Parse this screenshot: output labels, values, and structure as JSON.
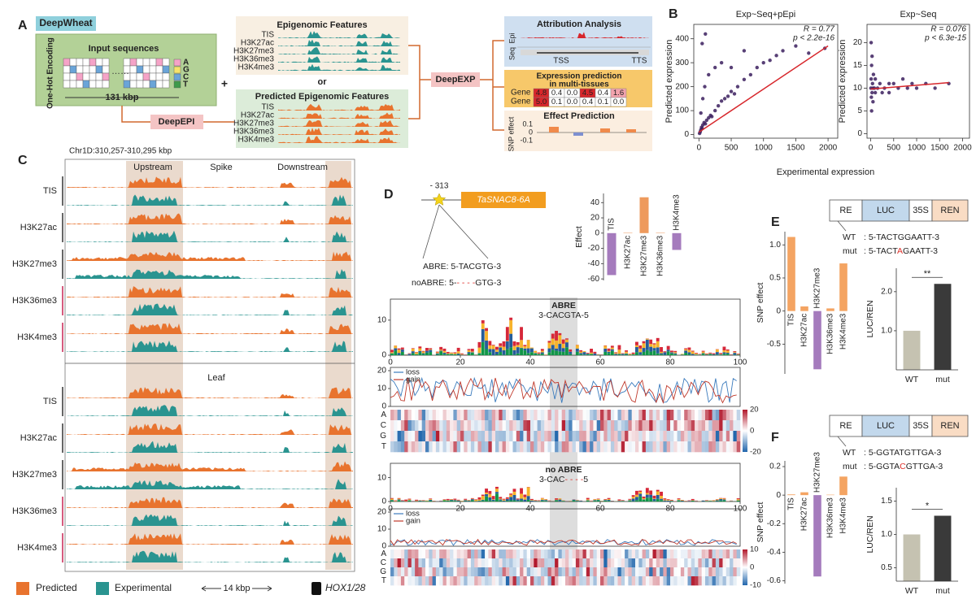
{
  "panel_a": {
    "label": "A",
    "model": "DeepWheat",
    "input_title": "Input sequences",
    "encoding": "One-Hot Encoding",
    "bases": [
      "A",
      "G",
      "C",
      "T"
    ],
    "length": "131 kbp",
    "plus": "+",
    "or": "or",
    "epi_title": "Epigenomic Features",
    "pred_title": "Predicted Epigenomic Features",
    "marks": [
      "TIS",
      "H3K27ac",
      "H3K27me3",
      "H3K36me3",
      "H3K4me3"
    ],
    "deepepi": "DeepEPI",
    "deepexp": "DeepEXP",
    "attribution": "Attribution Analysis",
    "epi_seq": [
      "Epi",
      "Seq"
    ],
    "tss": "TSS",
    "tts": "TTS",
    "expr_title": [
      "Expression prediction",
      "in multi-tissues"
    ],
    "genes": [
      "Gene",
      "Gene"
    ],
    "expr_table": [
      [
        "4.8",
        "0.4",
        "0.0",
        "4.5",
        "0.4",
        "1.6"
      ],
      [
        "5.0",
        "0.1",
        "0.0",
        "0.4",
        "0.1",
        "0.0"
      ]
    ],
    "effect_title": "Effect Prediction",
    "snp_effect": "SNP effect",
    "effect_ticks": [
      "0.1",
      "0",
      "-0.1"
    ]
  },
  "panel_b": {
    "label": "B",
    "xlabel": "Experimental expression",
    "ylabel": "Predicted expression",
    "charts": [
      {
        "type": "scatter",
        "title": "Exp~Seq+pEpi",
        "r": "R = 0.77",
        "p": "p < 2.2e-16",
        "xlim": [
          -80,
          2150
        ],
        "ylim": [
          -15,
          460
        ],
        "xticks": [
          0,
          500,
          1000,
          1500,
          2000
        ],
        "yticks": [
          0,
          100,
          200,
          300,
          400
        ],
        "color": "#3b1f5e",
        "x": [
          10,
          20,
          30,
          40,
          50,
          60,
          80,
          100,
          120,
          150,
          180,
          200,
          250,
          300,
          350,
          400,
          450,
          500,
          550,
          600,
          700,
          800,
          900,
          1000,
          1100,
          1200,
          1300,
          1500,
          1700,
          1950,
          30,
          60,
          90,
          150,
          250,
          350,
          500,
          700,
          100,
          50
        ],
        "y": [
          5,
          12,
          20,
          30,
          25,
          40,
          50,
          45,
          60,
          70,
          80,
          75,
          100,
          120,
          140,
          150,
          160,
          180,
          170,
          200,
          230,
          250,
          280,
          300,
          310,
          330,
          350,
          370,
          340,
          360,
          90,
          150,
          200,
          250,
          280,
          300,
          280,
          350,
          420,
          380
        ],
        "fit": {
          "color": "#d7262b",
          "x": [
            0,
            2000
          ],
          "y": [
            10,
            370
          ]
        }
      },
      {
        "type": "scatter",
        "title": "Exp~Seq",
        "r": "R = 0.076",
        "p": "p < 6.3e-15",
        "xlim": [
          -80,
          2150
        ],
        "ylim": [
          -1,
          24
        ],
        "xticks": [
          0,
          500,
          1000,
          1500,
          2000
        ],
        "yticks": [
          0,
          5,
          10,
          15,
          20
        ],
        "color": "#3b1f5e",
        "x": [
          5,
          10,
          15,
          20,
          30,
          40,
          50,
          60,
          80,
          100,
          150,
          200,
          300,
          400,
          500,
          600,
          700,
          800,
          900,
          1000,
          1200,
          1400,
          1700,
          10,
          20,
          30,
          50,
          100,
          250,
          400
        ],
        "y": [
          10,
          12,
          8,
          15,
          9,
          11,
          10,
          13,
          10,
          9,
          10,
          11,
          10,
          9,
          11,
          10,
          12,
          10,
          11,
          10,
          11,
          10,
          11,
          20,
          5,
          17,
          7,
          12,
          9,
          11
        ],
        "fit": {
          "color": "#d7262b",
          "x": [
            0,
            1700
          ],
          "y": [
            9.8,
            11.2
          ]
        }
      }
    ]
  },
  "panel_c": {
    "label": "C",
    "region": "Chr1D:310,257-310,295 kbp",
    "sections": [
      "Upstream",
      "Spike",
      "Downstream"
    ],
    "tissue2": "Leaf",
    "legend": [
      "Predicted",
      "Experimental"
    ],
    "colors": [
      "#e8732e",
      "#2a9490"
    ],
    "scale": "14 kbp",
    "gene": "HOX1/28"
  },
  "panel_d": {
    "label": "D",
    "position": "- 313",
    "gene": "TaSNAC8-6A",
    "abre": "ABRE: 5-TACGTG-3",
    "noabre": [
      "noABRE: 5-",
      "- - - -",
      "GTG-3"
    ],
    "effect_chart": {
      "type": "bar",
      "ylabel": "Effect",
      "categories": [
        "TIS",
        "H3K27ac",
        "H3K27me3",
        "H3K36me3",
        "H3K4me3"
      ],
      "values": [
        -55,
        0.5,
        47,
        0.5,
        -22
      ],
      "colors": [
        "#a57bbd",
        "#ee9a5d",
        "#ee9a5d",
        "#ee9a5d",
        "#a57bbd"
      ],
      "ylim": [
        -62,
        52
      ],
      "yticks": [
        -60,
        -40,
        -20,
        0,
        20,
        40
      ]
    },
    "logos": [
      {
        "title": "ABRE",
        "motif": [
          "3-CACGTA-5"
        ],
        "yticks": [
          0,
          10
        ],
        "xticks": [
          0,
          20,
          40,
          60,
          80,
          100
        ],
        "line_yticks": [
          0,
          10,
          20
        ],
        "legend": [
          "loss",
          "gain"
        ],
        "rows": [
          "A",
          "C",
          "G",
          "T"
        ],
        "cbar": [
          20,
          0,
          -20
        ]
      },
      {
        "title": "no ABRE",
        "motif": [
          "3-CAC",
          "- - - -",
          "5"
        ],
        "yticks": [
          0,
          10
        ],
        "xticks": [
          0,
          20,
          40,
          60,
          80,
          100
        ],
        "line_yticks": [
          0,
          10,
          20
        ],
        "legend": [
          "loss",
          "gain"
        ],
        "rows": [
          "A",
          "C",
          "G",
          "T"
        ],
        "cbar": [
          10,
          0,
          -10
        ]
      }
    ]
  },
  "panel_e": {
    "label": "E",
    "construct": [
      "RE",
      "LUC",
      "35S",
      "REN"
    ],
    "wt": [
      "WT",
      ": 5-TACTGGAATT-3"
    ],
    "mut": [
      "mut",
      ": 5-TACT",
      "A",
      "GAATT-3"
    ],
    "snp_chart": {
      "type": "bar",
      "ylabel": "SNP effect",
      "categories": [
        "TIS",
        "H3K27ac",
        "H3K27me3",
        "H3K36me3",
        "H3K4me3"
      ],
      "values": [
        1.12,
        0.07,
        -0.88,
        0.04,
        0.72
      ],
      "colors": [
        "#f4a462",
        "#f4a462",
        "#a57bbd",
        "#f4a462",
        "#f4a462"
      ],
      "ylim": [
        -0.95,
        1.2
      ],
      "yticks": [
        -0.5,
        0,
        0.5,
        {
          "value": 1,
          "label": "1.0"
        }
      ]
    },
    "luc_chart": {
      "type": "bar",
      "ylabel": "LUC/REN",
      "categories": [
        "WT",
        "mut"
      ],
      "values": [
        1.0,
        2.2
      ],
      "colors": [
        "#c5c2b1",
        "#3a3a3a"
      ],
      "ylim": [
        0,
        2.6
      ],
      "yticks": [
        {
          "value": 1,
          "label": "1.0"
        },
        {
          "value": 2,
          "label": "2.0"
        }
      ],
      "signif": "**"
    }
  },
  "panel_f": {
    "label": "F",
    "construct": [
      "RE",
      "LUC",
      "35S",
      "REN"
    ],
    "wt": [
      "WT",
      ": 5-GGTATGTTGA-3"
    ],
    "mut": [
      "mut",
      ": 5-GGTA",
      "C",
      "GTTGA-3"
    ],
    "snp_chart": {
      "type": "bar",
      "ylabel": "SNP effect",
      "categories": [
        "TIS",
        "H3K27ac",
        "H3K27me3",
        "H3K36me3",
        "H3K4me3"
      ],
      "values": [
        0.005,
        0.02,
        -0.57,
        0.003,
        0.13
      ],
      "colors": [
        "#f4a462",
        "#f4a462",
        "#a57bbd",
        "#f4a462",
        "#f4a462"
      ],
      "ylim": [
        -0.62,
        0.24
      ],
      "yticks": [
        -0.6,
        -0.4,
        -0.2,
        0,
        0.2
      ]
    },
    "luc_chart": {
      "type": "bar",
      "ylabel": "LUC/REN",
      "categories": [
        "WT",
        "mut"
      ],
      "values": [
        1.0,
        1.28
      ],
      "colors": [
        "#c5c2b1",
        "#3a3a3a"
      ],
      "ylim": [
        0.3,
        1.7
      ],
      "yticks": [
        0.5,
        {
          "value": 1,
          "label": "1.0"
        },
        1.5
      ],
      "signif": "*"
    }
  }
}
